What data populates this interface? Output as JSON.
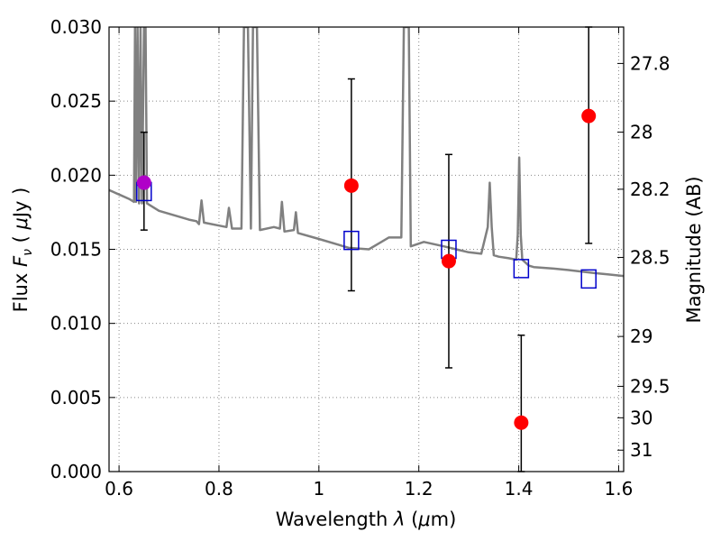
{
  "chart_data": {
    "type": "scatter",
    "xlabel": "Wavelength",
    "xlabel_symbol": "λ",
    "xlabel_unit_open": "(",
    "xlabel_unit_mu": "μ",
    "xlabel_unit_rest": "m)",
    "ylabel": "Flux",
    "ylabel_symbol": "F",
    "ylabel_sub": "ν",
    "ylabel_unit_open": "(",
    "ylabel_unit_mu": "μ",
    "ylabel_unit_rest": "Jy )",
    "y2label": "Magnitude (AB)",
    "xlim": [
      0.58,
      1.61
    ],
    "ylim": [
      0.0,
      0.03
    ],
    "grid": true,
    "x_ticks": [
      {
        "value": 0.6,
        "label": "0.6"
      },
      {
        "value": 0.8,
        "label": "0.8"
      },
      {
        "value": 1.0,
        "label": "1"
      },
      {
        "value": 1.2,
        "label": "1.2"
      },
      {
        "value": 1.4,
        "label": "1.4"
      },
      {
        "value": 1.6,
        "label": "1.6"
      }
    ],
    "y_ticks": [
      {
        "value": 0.0,
        "label": "0.000"
      },
      {
        "value": 0.005,
        "label": "0.005"
      },
      {
        "value": 0.01,
        "label": "0.010"
      },
      {
        "value": 0.015,
        "label": "0.015"
      },
      {
        "value": 0.02,
        "label": "0.020"
      },
      {
        "value": 0.025,
        "label": "0.025"
      },
      {
        "value": 0.03,
        "label": "0.030"
      }
    ],
    "y2_ticks": [
      {
        "label": "27.8",
        "magnitude": 27.8
      },
      {
        "label": "28",
        "magnitude": 28.0
      },
      {
        "label": "28.2",
        "magnitude": 28.2
      },
      {
        "label": "28.5",
        "magnitude": 28.5
      },
      {
        "label": "29",
        "magnitude": 29.0
      },
      {
        "label": "29.5",
        "magnitude": 29.5
      },
      {
        "label": "30",
        "magnitude": 30.0
      },
      {
        "label": "31",
        "magnitude": 31.0
      }
    ],
    "colors": {
      "model_spectrum": "#808080",
      "observed_points": "#ff0000",
      "observed_first_point": "#b000c8",
      "model_photometry": "#0000cc",
      "error_bars": "#000000",
      "grid": "#888888"
    },
    "model_spectrum": [
      [
        0.58,
        0.019
      ],
      [
        0.6,
        0.0187
      ],
      [
        0.62,
        0.0184
      ],
      [
        0.63,
        0.0182
      ],
      [
        0.632,
        0.03
      ],
      [
        0.634,
        0.0182
      ],
      [
        0.637,
        0.03
      ],
      [
        0.64,
        0.0181
      ],
      [
        0.643,
        0.03
      ],
      [
        0.646,
        0.0181
      ],
      [
        0.65,
        0.03
      ],
      [
        0.653,
        0.03
      ],
      [
        0.656,
        0.0181
      ],
      [
        0.68,
        0.0176
      ],
      [
        0.7,
        0.0174
      ],
      [
        0.72,
        0.0172
      ],
      [
        0.74,
        0.017
      ],
      [
        0.755,
        0.0169
      ],
      [
        0.76,
        0.0167
      ],
      [
        0.765,
        0.0183
      ],
      [
        0.77,
        0.0168
      ],
      [
        0.8,
        0.0166
      ],
      [
        0.815,
        0.0165
      ],
      [
        0.82,
        0.0178
      ],
      [
        0.826,
        0.0164
      ],
      [
        0.845,
        0.0164
      ],
      [
        0.85,
        0.03
      ],
      [
        0.858,
        0.03
      ],
      [
        0.864,
        0.0164
      ],
      [
        0.868,
        0.03
      ],
      [
        0.876,
        0.03
      ],
      [
        0.882,
        0.0163
      ],
      [
        0.91,
        0.0165
      ],
      [
        0.922,
        0.0164
      ],
      [
        0.926,
        0.0182
      ],
      [
        0.931,
        0.0162
      ],
      [
        0.95,
        0.0163
      ],
      [
        0.954,
        0.0175
      ],
      [
        0.958,
        0.0161
      ],
      [
        1.0,
        0.0157
      ],
      [
        1.04,
        0.0153
      ],
      [
        1.06,
        0.0151
      ],
      [
        1.1,
        0.015
      ],
      [
        1.12,
        0.0154
      ],
      [
        1.14,
        0.0158
      ],
      [
        1.165,
        0.0158
      ],
      [
        1.17,
        0.03
      ],
      [
        1.18,
        0.03
      ],
      [
        1.184,
        0.0152
      ],
      [
        1.21,
        0.0155
      ],
      [
        1.25,
        0.0152
      ],
      [
        1.3,
        0.0148
      ],
      [
        1.325,
        0.0147
      ],
      [
        1.338,
        0.0165
      ],
      [
        1.342,
        0.0195
      ],
      [
        1.346,
        0.0165
      ],
      [
        1.35,
        0.0146
      ],
      [
        1.36,
        0.0145
      ],
      [
        1.38,
        0.0144
      ],
      [
        1.395,
        0.0143
      ],
      [
        1.398,
        0.016
      ],
      [
        1.401,
        0.0212
      ],
      [
        1.404,
        0.016
      ],
      [
        1.407,
        0.0143
      ],
      [
        1.42,
        0.0139
      ],
      [
        1.43,
        0.0138
      ],
      [
        1.47,
        0.0137
      ],
      [
        1.5,
        0.0136
      ],
      [
        1.55,
        0.0134
      ],
      [
        1.58,
        0.0133
      ],
      [
        1.61,
        0.0132
      ]
    ],
    "observed": [
      {
        "x": 0.65,
        "y": 0.0195,
        "err_low": 0.0163,
        "err_high": 0.0229
      },
      {
        "x": 1.065,
        "y": 0.0193,
        "err_low": 0.0122,
        "err_high": 0.0265
      },
      {
        "x": 1.26,
        "y": 0.0142,
        "err_low": 0.007,
        "err_high": 0.0214
      },
      {
        "x": 1.405,
        "y": 0.0033,
        "err_low": 0.0,
        "err_high": 0.0092
      },
      {
        "x": 1.54,
        "y": 0.024,
        "err_low": 0.0154,
        "err_high": 0.03
      }
    ],
    "model_photometry": [
      {
        "x": 0.65,
        "y": 0.0189
      },
      {
        "x": 1.065,
        "y": 0.0156
      },
      {
        "x": 1.26,
        "y": 0.015
      },
      {
        "x": 1.405,
        "y": 0.0137
      },
      {
        "x": 1.54,
        "y": 0.013
      }
    ]
  }
}
